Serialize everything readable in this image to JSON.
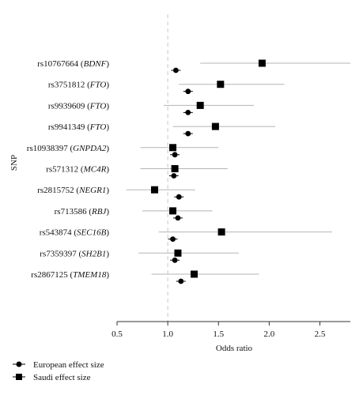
{
  "chart_data": {
    "type": "forest",
    "xlabel": "Odds ratio",
    "ylabel": "SNP",
    "xlim": [
      0.5,
      2.8
    ],
    "xticks": [
      "0.5",
      "1.0",
      "1.5",
      "2.0",
      "2.5"
    ],
    "xtick_values": [
      0.5,
      1.0,
      1.5,
      2.0,
      2.5
    ],
    "reference_line": 1.0,
    "grid": false,
    "legend_position": "bottom-left",
    "categories": [
      {
        "snp": "rs10767664",
        "gene": "BDNF"
      },
      {
        "snp": "rs3751812",
        "gene": "FTO"
      },
      {
        "snp": "rs9939609",
        "gene": "FTO"
      },
      {
        "snp": "rs9941349",
        "gene": "FTO"
      },
      {
        "snp": "rs10938397",
        "gene": "GNPDA2"
      },
      {
        "snp": "rs571312",
        "gene": "MC4R"
      },
      {
        "snp": "rs2815752",
        "gene": "NEGR1"
      },
      {
        "snp": "rs713586",
        "gene": "RBJ"
      },
      {
        "snp": "rs543874",
        "gene": "SEC16B"
      },
      {
        "snp": "rs7359397",
        "gene": "SH2B1"
      },
      {
        "snp": "rs2867125",
        "gene": "TMEM18"
      }
    ],
    "series": [
      {
        "name": "European effect size",
        "marker": "circle",
        "values": [
          1.08,
          1.2,
          1.2,
          1.2,
          1.07,
          1.06,
          1.11,
          1.1,
          1.05,
          1.07,
          1.13
        ]
      },
      {
        "name": "Saudi effect size",
        "marker": "square",
        "values": [
          1.93,
          1.52,
          1.32,
          1.47,
          1.05,
          1.07,
          0.87,
          1.05,
          1.53,
          1.1,
          1.26
        ],
        "ci_low": [
          1.32,
          1.11,
          0.96,
          1.05,
          0.73,
          0.73,
          0.59,
          0.75,
          0.91,
          0.71,
          0.84
        ],
        "ci_high": [
          2.8,
          2.15,
          1.85,
          2.06,
          1.5,
          1.59,
          1.27,
          1.44,
          2.62,
          1.7,
          1.9
        ]
      }
    ]
  },
  "colors": {
    "marker": "#000000",
    "ci_line": "#b5b5b5",
    "reference_line": "#c8c8c8",
    "axis": "#333333"
  }
}
